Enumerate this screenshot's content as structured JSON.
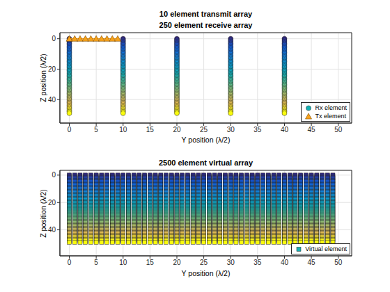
{
  "chart_data": [
    {
      "type": "scatter",
      "title": "10 element transmit array\n250 element receive array",
      "x_label": "Y position (λ/2)",
      "y_label": "Z position (λ/2)",
      "xlim": [
        -1.75,
        52.5
      ],
      "xticks": [
        0,
        5,
        10,
        15,
        20,
        25,
        30,
        35,
        40,
        45,
        50
      ],
      "ylim": [
        55.5,
        -4
      ],
      "yticks": [
        0,
        20,
        40
      ],
      "grid": true,
      "legend": "lower right",
      "series": [
        {
          "name": "Rx element",
          "marker": "circle",
          "y_positions": [
            0,
            10,
            20,
            30,
            40
          ],
          "z_positions": [
            0,
            1,
            2,
            3,
            4,
            5,
            6,
            7,
            8,
            9,
            10,
            11,
            12,
            13,
            14,
            15,
            16,
            17,
            18,
            19,
            20,
            21,
            22,
            23,
            24,
            25,
            26,
            27,
            28,
            29,
            30,
            31,
            32,
            33,
            34,
            35,
            36,
            37,
            38,
            39,
            40,
            41,
            42,
            43,
            44,
            45,
            46,
            47,
            48,
            49
          ]
        },
        {
          "name": "Tx element",
          "marker": "triangle",
          "color": "#f7a21c",
          "line_style": "solid",
          "y_positions": [
            0,
            1,
            2,
            3,
            4,
            5,
            6,
            7,
            8,
            9
          ],
          "z_positions": [
            0
          ]
        }
      ]
    },
    {
      "type": "scatter",
      "title": "2500 element virtual array",
      "x_label": "Y position (λ/2)",
      "y_label": "Z position (λ/2)",
      "xlim": [
        -1.75,
        52.5
      ],
      "xticks": [
        0,
        5,
        10,
        15,
        20,
        25,
        30,
        35,
        40,
        45,
        50
      ],
      "ylim": [
        59,
        -3.5
      ],
      "yticks": [
        0,
        20,
        40
      ],
      "grid": true,
      "legend": "lower right",
      "series": [
        {
          "name": "Virtual element",
          "marker": "square",
          "y_positions": [
            0,
            1,
            2,
            3,
            4,
            5,
            6,
            7,
            8,
            9,
            10,
            11,
            12,
            13,
            14,
            15,
            16,
            17,
            18,
            19,
            20,
            21,
            22,
            23,
            24,
            25,
            26,
            27,
            28,
            29,
            30,
            31,
            32,
            33,
            34,
            35,
            36,
            37,
            38,
            39,
            40,
            41,
            42,
            43,
            44,
            45,
            46,
            47,
            48,
            49
          ],
          "z_positions": [
            0,
            1,
            2,
            3,
            4,
            5,
            6,
            7,
            8,
            9,
            10,
            11,
            12,
            13,
            14,
            15,
            16,
            17,
            18,
            19,
            20,
            21,
            22,
            23,
            24,
            25,
            26,
            27,
            28,
            29,
            30,
            31,
            32,
            33,
            34,
            35,
            36,
            37,
            38,
            39,
            40,
            41,
            42,
            43,
            44,
            45,
            46,
            47,
            48,
            49
          ]
        }
      ]
    }
  ]
}
